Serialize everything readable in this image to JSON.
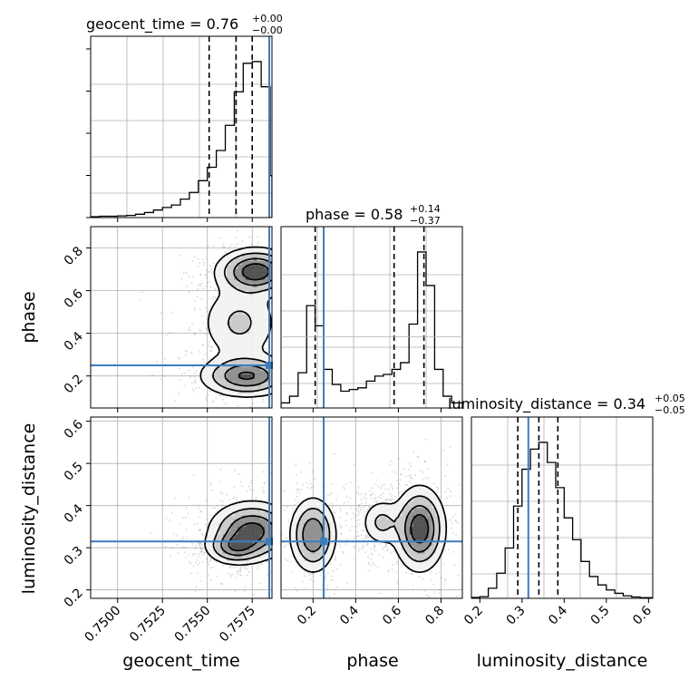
{
  "chart_data": {
    "type": "corner",
    "parameters": [
      "geocent_time",
      "phase",
      "luminosity_distance"
    ],
    "truth_color": "#3c7dbd",
    "truth_values": {
      "geocent_time": 0.75845,
      "phase": 0.25,
      "luminosity_distance": 0.315
    },
    "panels": [
      {
        "id": "geocent_time",
        "kind": "hist1d",
        "title": {
          "prefix": "geocent_time = 0.76",
          "sup": "+0.00",
          "sub": "−0.00"
        },
        "xlim": [
          0.7485,
          0.7586
        ],
        "quantiles": [
          0.7551,
          0.7566,
          0.7575
        ],
        "truth": 0.75845,
        "bins": {
          "edges": [
            0.7485,
            0.749,
            0.7495,
            0.75,
            0.7505,
            0.751,
            0.7515,
            0.752,
            0.7525,
            0.753,
            0.7535,
            0.754,
            0.7545,
            0.755,
            0.7555,
            0.756,
            0.7565,
            0.757,
            0.7575,
            0.758,
            0.7585,
            0.7586
          ],
          "counts": [
            0.005,
            0.008,
            0.008,
            0.01,
            0.013,
            0.02,
            0.03,
            0.045,
            0.06,
            0.075,
            0.11,
            0.15,
            0.22,
            0.3,
            0.4,
            0.55,
            0.75,
            0.92,
            0.93,
            0.78,
            0.25
          ]
        }
      },
      {
        "id": "phase",
        "kind": "hist1d",
        "title": {
          "prefix": "phase = 0.58",
          "sup": "+0.14",
          "sub": "−0.37"
        },
        "xlim": [
          0.05,
          0.9
        ],
        "quantiles": [
          0.21,
          0.58,
          0.72
        ],
        "truth": 0.25,
        "bins": {
          "edges": [
            0.05,
            0.09,
            0.13,
            0.17,
            0.21,
            0.25,
            0.29,
            0.33,
            0.37,
            0.41,
            0.45,
            0.49,
            0.53,
            0.57,
            0.61,
            0.65,
            0.69,
            0.73,
            0.77,
            0.81,
            0.85,
            0.9
          ],
          "counts": [
            0.03,
            0.07,
            0.21,
            0.61,
            0.49,
            0.23,
            0.14,
            0.1,
            0.11,
            0.12,
            0.16,
            0.19,
            0.2,
            0.23,
            0.27,
            0.5,
            0.93,
            0.73,
            0.23,
            0.07,
            0.03
          ]
        }
      },
      {
        "id": "luminosity_distance",
        "kind": "hist1d",
        "title": {
          "prefix": "luminosity_distance = 0.34",
          "sup": "+0.05",
          "sub": "−0.05"
        },
        "xlim": [
          0.18,
          0.61
        ],
        "quantiles": [
          0.29,
          0.34,
          0.385
        ],
        "truth": 0.315,
        "bins": {
          "edges": [
            0.18,
            0.2,
            0.22,
            0.24,
            0.26,
            0.28,
            0.3,
            0.32,
            0.34,
            0.36,
            0.38,
            0.4,
            0.42,
            0.44,
            0.46,
            0.48,
            0.5,
            0.52,
            0.54,
            0.56,
            0.58,
            0.61
          ],
          "counts": [
            0.005,
            0.01,
            0.06,
            0.15,
            0.3,
            0.55,
            0.77,
            0.89,
            0.93,
            0.81,
            0.66,
            0.48,
            0.35,
            0.22,
            0.13,
            0.08,
            0.05,
            0.03,
            0.015,
            0.008,
            0.004
          ]
        }
      },
      {
        "id": "phase_vs_geocent_time",
        "kind": "hist2d",
        "x": "geocent_time",
        "y": "phase",
        "xlim": [
          0.7485,
          0.7586
        ],
        "ylim": [
          0.05,
          0.9
        ],
        "yticks": [
          0.2,
          0.4,
          0.6,
          0.8
        ],
        "ytick_labels": [
          "0.2",
          "0.4",
          "0.6",
          "0.8"
        ],
        "ylabel": "phase",
        "truth": [
          0.75845,
          0.25
        ],
        "modes": [
          {
            "cx": 0.7577,
            "cy": 0.69,
            "sx": 0.0011,
            "sy": 0.055,
            "w": 1.0
          },
          {
            "cx": 0.7572,
            "cy": 0.2,
            "sx": 0.0013,
            "sy": 0.05,
            "w": 0.85
          },
          {
            "cx": 0.7568,
            "cy": 0.45,
            "sx": 0.0012,
            "sy": 0.1,
            "w": 0.35
          }
        ],
        "contour_levels": [
          0.12,
          0.3,
          0.55,
          0.8
        ]
      },
      {
        "id": "luminosity_distance_vs_geocent_time",
        "kind": "hist2d",
        "x": "geocent_time",
        "y": "luminosity_distance",
        "xlim": [
          0.7485,
          0.7586
        ],
        "ylim": [
          0.18,
          0.61
        ],
        "xticks": [
          0.75,
          0.7525,
          0.755,
          0.7575
        ],
        "xtick_labels": [
          "0.7500",
          "0.7525",
          "0.7550",
          "0.7575"
        ],
        "yticks": [
          0.2,
          0.3,
          0.4,
          0.5,
          0.6
        ],
        "ytick_labels": [
          "0.2",
          "0.3",
          "0.4",
          "0.5",
          "0.6"
        ],
        "xlabel": "geocent_time",
        "ylabel": "luminosity_distance",
        "truth": [
          0.75845,
          0.315
        ],
        "modes": [
          {
            "cx": 0.7575,
            "cy": 0.34,
            "sx": 0.0012,
            "sy": 0.035,
            "w": 1.0
          },
          {
            "cx": 0.7565,
            "cy": 0.3,
            "sx": 0.0008,
            "sy": 0.02,
            "w": 0.6
          }
        ],
        "contour_levels": [
          0.12,
          0.3,
          0.55,
          0.8
        ]
      },
      {
        "id": "luminosity_distance_vs_phase",
        "kind": "hist2d",
        "x": "phase",
        "y": "luminosity_distance",
        "xlim": [
          0.05,
          0.9
        ],
        "ylim": [
          0.18,
          0.61
        ],
        "xticks": [
          0.2,
          0.4,
          0.6,
          0.8
        ],
        "xtick_labels": [
          "0.2",
          "0.4",
          "0.6",
          "0.8"
        ],
        "xlabel": "phase",
        "truth": [
          0.25,
          0.315
        ],
        "modes": [
          {
            "cx": 0.2,
            "cy": 0.33,
            "sx": 0.055,
            "sy": 0.045,
            "w": 0.8
          },
          {
            "cx": 0.7,
            "cy": 0.345,
            "sx": 0.06,
            "sy": 0.05,
            "w": 1.0
          },
          {
            "cx": 0.52,
            "cy": 0.36,
            "sx": 0.05,
            "sy": 0.03,
            "w": 0.35
          }
        ],
        "contour_levels": [
          0.12,
          0.3,
          0.55,
          0.8
        ]
      },
      {
        "id": "hist_luminosity_distance_axis",
        "kind": "axis-only",
        "xticks": [
          0.2,
          0.3,
          0.4,
          0.5,
          0.6
        ],
        "xtick_labels": [
          "0.2",
          "0.3",
          "0.4",
          "0.5",
          "0.6"
        ],
        "xlabel": "luminosity_distance"
      }
    ]
  }
}
